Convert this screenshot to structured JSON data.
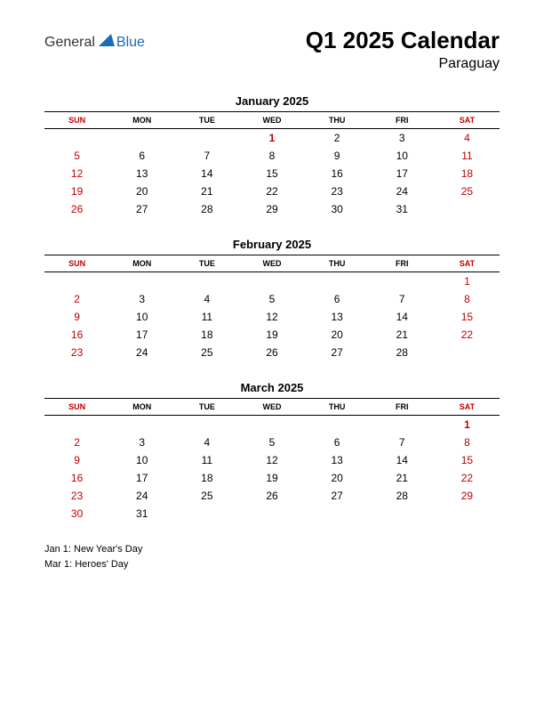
{
  "logo": {
    "text_left": "General",
    "text_right": "Blue",
    "color_left": "#333333",
    "color_right": "#1a6db5",
    "shape_color": "#1a6db5"
  },
  "title": "Q1 2025 Calendar",
  "subtitle": "Paraguay",
  "colors": {
    "weekend": "#c00000",
    "holiday": "#c00000",
    "text": "#000000",
    "background": "#ffffff",
    "border": "#000000"
  },
  "day_headers": [
    "SUN",
    "MON",
    "TUE",
    "WED",
    "THU",
    "FRI",
    "SAT"
  ],
  "months": [
    {
      "name": "January 2025",
      "weeks": [
        [
          "",
          "",
          "",
          "1",
          "2",
          "3",
          "4"
        ],
        [
          "5",
          "6",
          "7",
          "8",
          "9",
          "10",
          "11"
        ],
        [
          "12",
          "13",
          "14",
          "15",
          "16",
          "17",
          "18"
        ],
        [
          "19",
          "20",
          "21",
          "22",
          "23",
          "24",
          "25"
        ],
        [
          "26",
          "27",
          "28",
          "29",
          "30",
          "31",
          ""
        ]
      ],
      "holidays": [
        "1"
      ]
    },
    {
      "name": "February 2025",
      "weeks": [
        [
          "",
          "",
          "",
          "",
          "",
          "",
          "1"
        ],
        [
          "2",
          "3",
          "4",
          "5",
          "6",
          "7",
          "8"
        ],
        [
          "9",
          "10",
          "11",
          "12",
          "13",
          "14",
          "15"
        ],
        [
          "16",
          "17",
          "18",
          "19",
          "20",
          "21",
          "22"
        ],
        [
          "23",
          "24",
          "25",
          "26",
          "27",
          "28",
          ""
        ]
      ],
      "holidays": []
    },
    {
      "name": "March 2025",
      "weeks": [
        [
          "",
          "",
          "",
          "",
          "",
          "",
          "1"
        ],
        [
          "2",
          "3",
          "4",
          "5",
          "6",
          "7",
          "8"
        ],
        [
          "9",
          "10",
          "11",
          "12",
          "13",
          "14",
          "15"
        ],
        [
          "16",
          "17",
          "18",
          "19",
          "20",
          "21",
          "22"
        ],
        [
          "23",
          "24",
          "25",
          "26",
          "27",
          "28",
          "29"
        ],
        [
          "30",
          "31",
          "",
          "",
          "",
          "",
          ""
        ]
      ],
      "holidays": [
        "1"
      ]
    }
  ],
  "holiday_list": [
    "Jan 1: New Year's Day",
    "Mar 1: Heroes' Day"
  ]
}
